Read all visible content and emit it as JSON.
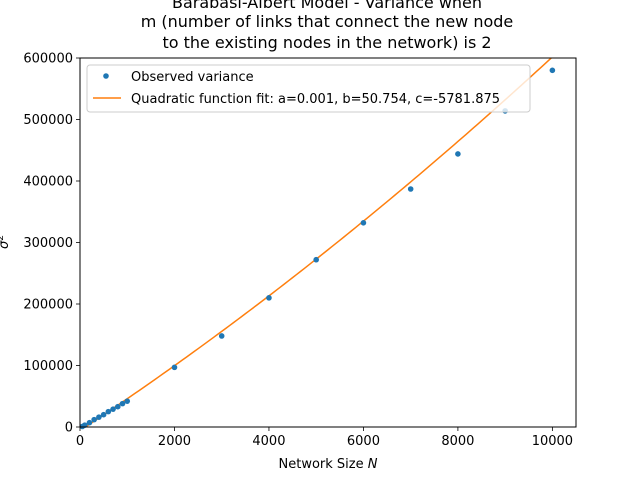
{
  "chart_data": {
    "type": "scatter",
    "title_lines": [
      "Barabasi-Albert Model - Variance when",
      "m (number of links that connect the new node",
      "to the existing nodes in the network) is 2"
    ],
    "xlabel_text": "Network Size ",
    "xlabel_var": "N",
    "ylabel_var": "σ",
    "ylabel_sup": "2",
    "xlim": [
      0,
      10500
    ],
    "ylim": [
      0,
      600000
    ],
    "x_ticks": [
      0,
      2000,
      4000,
      6000,
      8000,
      10000
    ],
    "y_ticks": [
      0,
      100000,
      200000,
      300000,
      400000,
      500000,
      600000
    ],
    "series": [
      {
        "name": "Observed variance",
        "kind": "points",
        "color": "#1f77b4",
        "x": [
          50,
          100,
          200,
          300,
          400,
          500,
          600,
          700,
          800,
          900,
          1000,
          2000,
          3000,
          4000,
          5000,
          6000,
          7000,
          8000,
          9000,
          10000
        ],
        "y": [
          800,
          3000,
          7000,
          12000,
          16000,
          20000,
          25000,
          29000,
          33000,
          38000,
          42000,
          97000,
          148000,
          210000,
          272000,
          332000,
          387000,
          444000,
          514000,
          580000
        ]
      },
      {
        "name": "Quadratic function fit: a=0.001, b=50.754, c=-5781.875",
        "kind": "line",
        "color": "#ff7f0e",
        "a": 0.001,
        "b": 50.754,
        "c": -5781.875,
        "x_range": [
          0,
          10000
        ]
      }
    ],
    "legend_position": "upper-left",
    "grid": false
  }
}
